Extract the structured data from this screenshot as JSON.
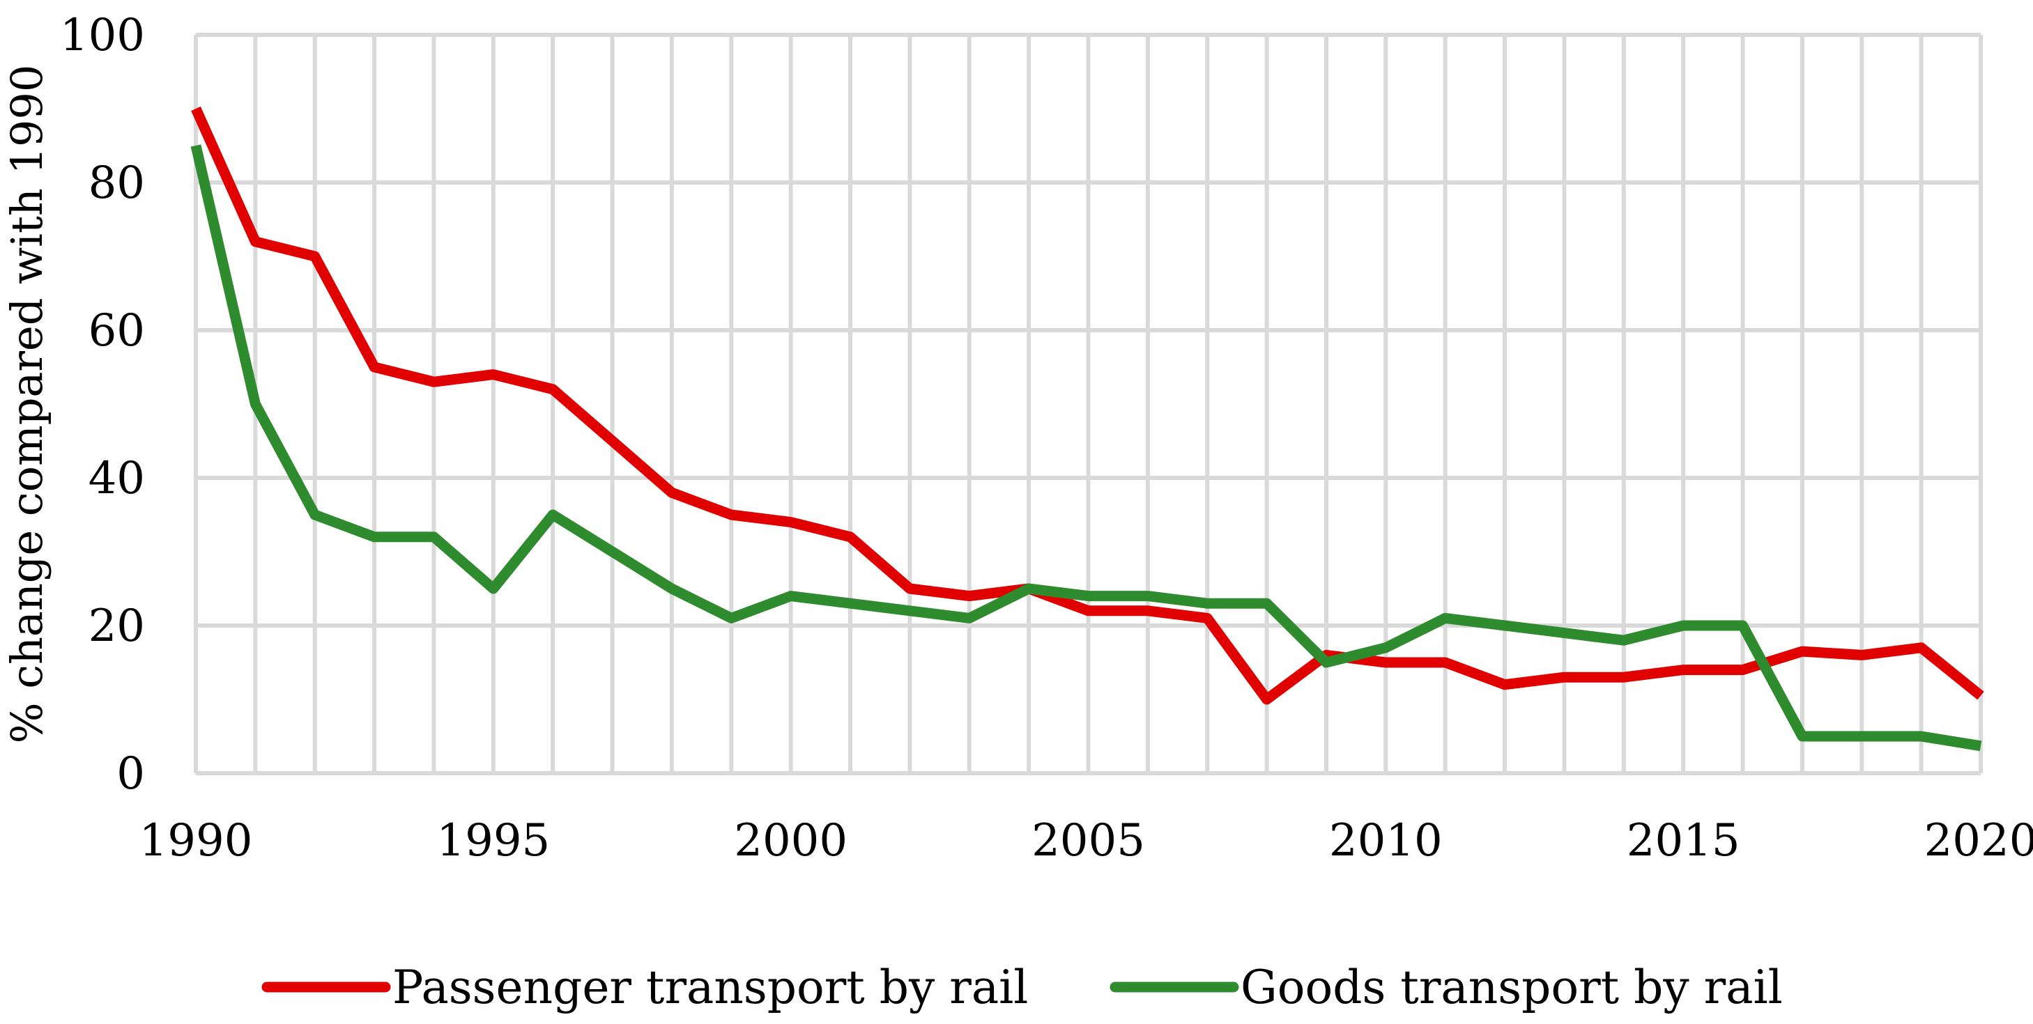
{
  "chart_data": {
    "type": "line",
    "title": "",
    "xlabel": "",
    "ylabel": "% change compared with 1990",
    "x": [
      1990,
      1991,
      1992,
      1993,
      1994,
      1995,
      1996,
      1997,
      1998,
      1999,
      2000,
      2001,
      2002,
      2003,
      2004,
      2005,
      2006,
      2007,
      2008,
      2009,
      2010,
      2011,
      2012,
      2013,
      2014,
      2015,
      2016,
      2017,
      2018,
      2019,
      2020
    ],
    "xlim": [
      1990,
      2020
    ],
    "x_tick_labels": [
      "1990",
      "1995",
      "2000",
      "2005",
      "2010",
      "2015",
      "2020"
    ],
    "ylim": [
      0,
      100
    ],
    "y_tick_labels": [
      "0",
      "20",
      "40",
      "60",
      "80",
      "100"
    ],
    "grid": true,
    "legend_position": "bottom",
    "series": [
      {
        "name": "Passenger transport by rail",
        "color": "#e00000",
        "values": [
          90,
          72,
          70,
          55,
          53,
          54,
          52,
          45,
          38,
          35,
          34,
          32,
          25,
          24,
          25,
          22,
          22,
          21,
          10,
          16,
          15,
          15,
          12,
          13,
          13,
          14,
          14,
          16.5,
          16,
          17,
          10.5
        ]
      },
      {
        "name": "Goods transport by rail",
        "color": "#2e8b2e",
        "values": [
          85,
          50,
          35,
          32,
          32,
          25,
          35,
          30,
          25,
          21,
          24,
          23,
          22,
          21,
          25,
          24,
          24,
          23,
          23,
          15,
          17,
          21,
          20,
          19,
          18,
          20,
          20,
          5,
          5,
          5,
          3.7
        ]
      }
    ]
  }
}
